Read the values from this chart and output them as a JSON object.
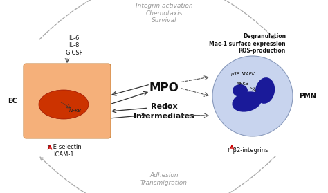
{
  "bg_color": "#ffffff",
  "ec_box_color": "#f5b07a",
  "ec_nucleus_color": "#cc3300",
  "pmn_circle_color": "#c8d4ee",
  "pmn_nucleus_color": "#1a1a99",
  "arrow_color_red": "#cc0000",
  "text_color_dark": "#111111",
  "text_color_gray": "#999999",
  "mpo_label": "MPO",
  "redox_label": "Redox\nIntermediates",
  "ec_label": "EC",
  "pmn_label": "PMN",
  "nfkb_label_ec": "NFκB",
  "nfkb_label_pmn": "NFκB",
  "p38_label": "p38 MAPK",
  "il_text": "IL-6\nIL-8\nG-CSF",
  "eselectin_text": "↑ E-selectin\nICAM-1",
  "degran_text": "Degranulation\nMac-1 surface expression\nROS-production",
  "b2_text": "↑ β2-integrins",
  "top_text": "Integrin activation\nChemotaxis\nSurvival",
  "bottom_text": "Adhesion\nTransmigration",
  "figw": 4.74,
  "figh": 2.79,
  "dpi": 100
}
